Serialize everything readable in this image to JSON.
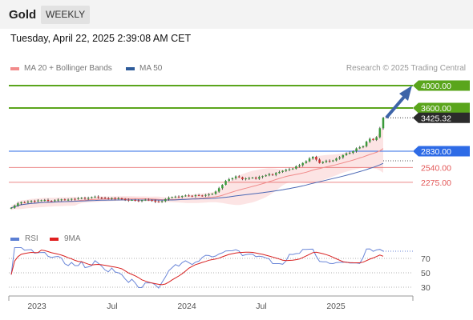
{
  "header": {
    "instrument": "Gold",
    "period": "WEEKLY",
    "datetime": "Tuesday, April 22, 2025 2:39:08 AM CET"
  },
  "legend": {
    "items": [
      {
        "label": "MA 20 + Bollinger Bands",
        "color": "#f28b8b"
      },
      {
        "label": "MA 50",
        "color": "#2e5b9a"
      }
    ],
    "copyright": "Research © 2025 Trading Central"
  },
  "rsi_legend": {
    "items": [
      {
        "label": "RSI",
        "color": "#5b7fd4"
      },
      {
        "label": "9MA",
        "color": "#e02020"
      }
    ]
  },
  "chart_data": [
    {
      "type": "candlestick",
      "title": "Gold",
      "x_axis_labels": [
        "2023",
        "Jul",
        "2024",
        "Jul",
        "2025"
      ],
      "levels": [
        {
          "value": 4000.0,
          "label": "4000.00",
          "kind": "target",
          "color": "#5aa51c"
        },
        {
          "value": 3600.0,
          "label": "3600.00",
          "kind": "target",
          "color": "#5aa51c"
        },
        {
          "value": 3425.32,
          "label": "3425.32",
          "kind": "last-price",
          "color": "#2b2b2b"
        },
        {
          "value": 2830.0,
          "label": "2830.00",
          "kind": "pivot",
          "color": "#2e6be6"
        },
        {
          "value": 2540.0,
          "label": "2540.00",
          "kind": "support",
          "color": "#e25555"
        },
        {
          "value": 2275.0,
          "label": "2275.00",
          "kind": "support",
          "color": "#e25555"
        }
      ],
      "close": [
        1820,
        1860,
        1900,
        1920,
        1915,
        1930,
        1945,
        1935,
        1950,
        1955,
        1960,
        1945,
        1940,
        1955,
        1965,
        1970,
        1960,
        1965,
        1980,
        1975,
        1990,
        2000,
        1985,
        1995,
        2010,
        2020,
        2005,
        2000,
        1990,
        1985,
        1995,
        1980,
        1990,
        1975,
        1965,
        1955,
        1960,
        1950,
        1945,
        1955,
        1965,
        1960,
        1950,
        1930,
        1925,
        1940,
        1975,
        2000,
        2010,
        2020,
        2015,
        2030,
        2040,
        2035,
        2030,
        2045,
        2040,
        2035,
        2050,
        2060,
        2070,
        2110,
        2170,
        2230,
        2300,
        2330,
        2350,
        2380,
        2365,
        2330,
        2345,
        2350,
        2360,
        2340,
        2370,
        2385,
        2400,
        2420,
        2410,
        2440,
        2460,
        2480,
        2500,
        2510,
        2520,
        2560,
        2580,
        2620,
        2650,
        2700,
        2730,
        2680,
        2620,
        2640,
        2660,
        2650,
        2665,
        2700,
        2720,
        2760,
        2790,
        2800,
        2830,
        2880,
        2900,
        2920,
        3000,
        3050,
        3030,
        3080,
        3240,
        3425.32
      ],
      "ma20_band": [
        1780,
        3200
      ],
      "ma50_range": [
        1750,
        2880
      ],
      "rsi": {
        "levels": [
          70,
          50,
          30
        ],
        "last_rsi": 80,
        "last_9ma": 73
      }
    }
  ]
}
